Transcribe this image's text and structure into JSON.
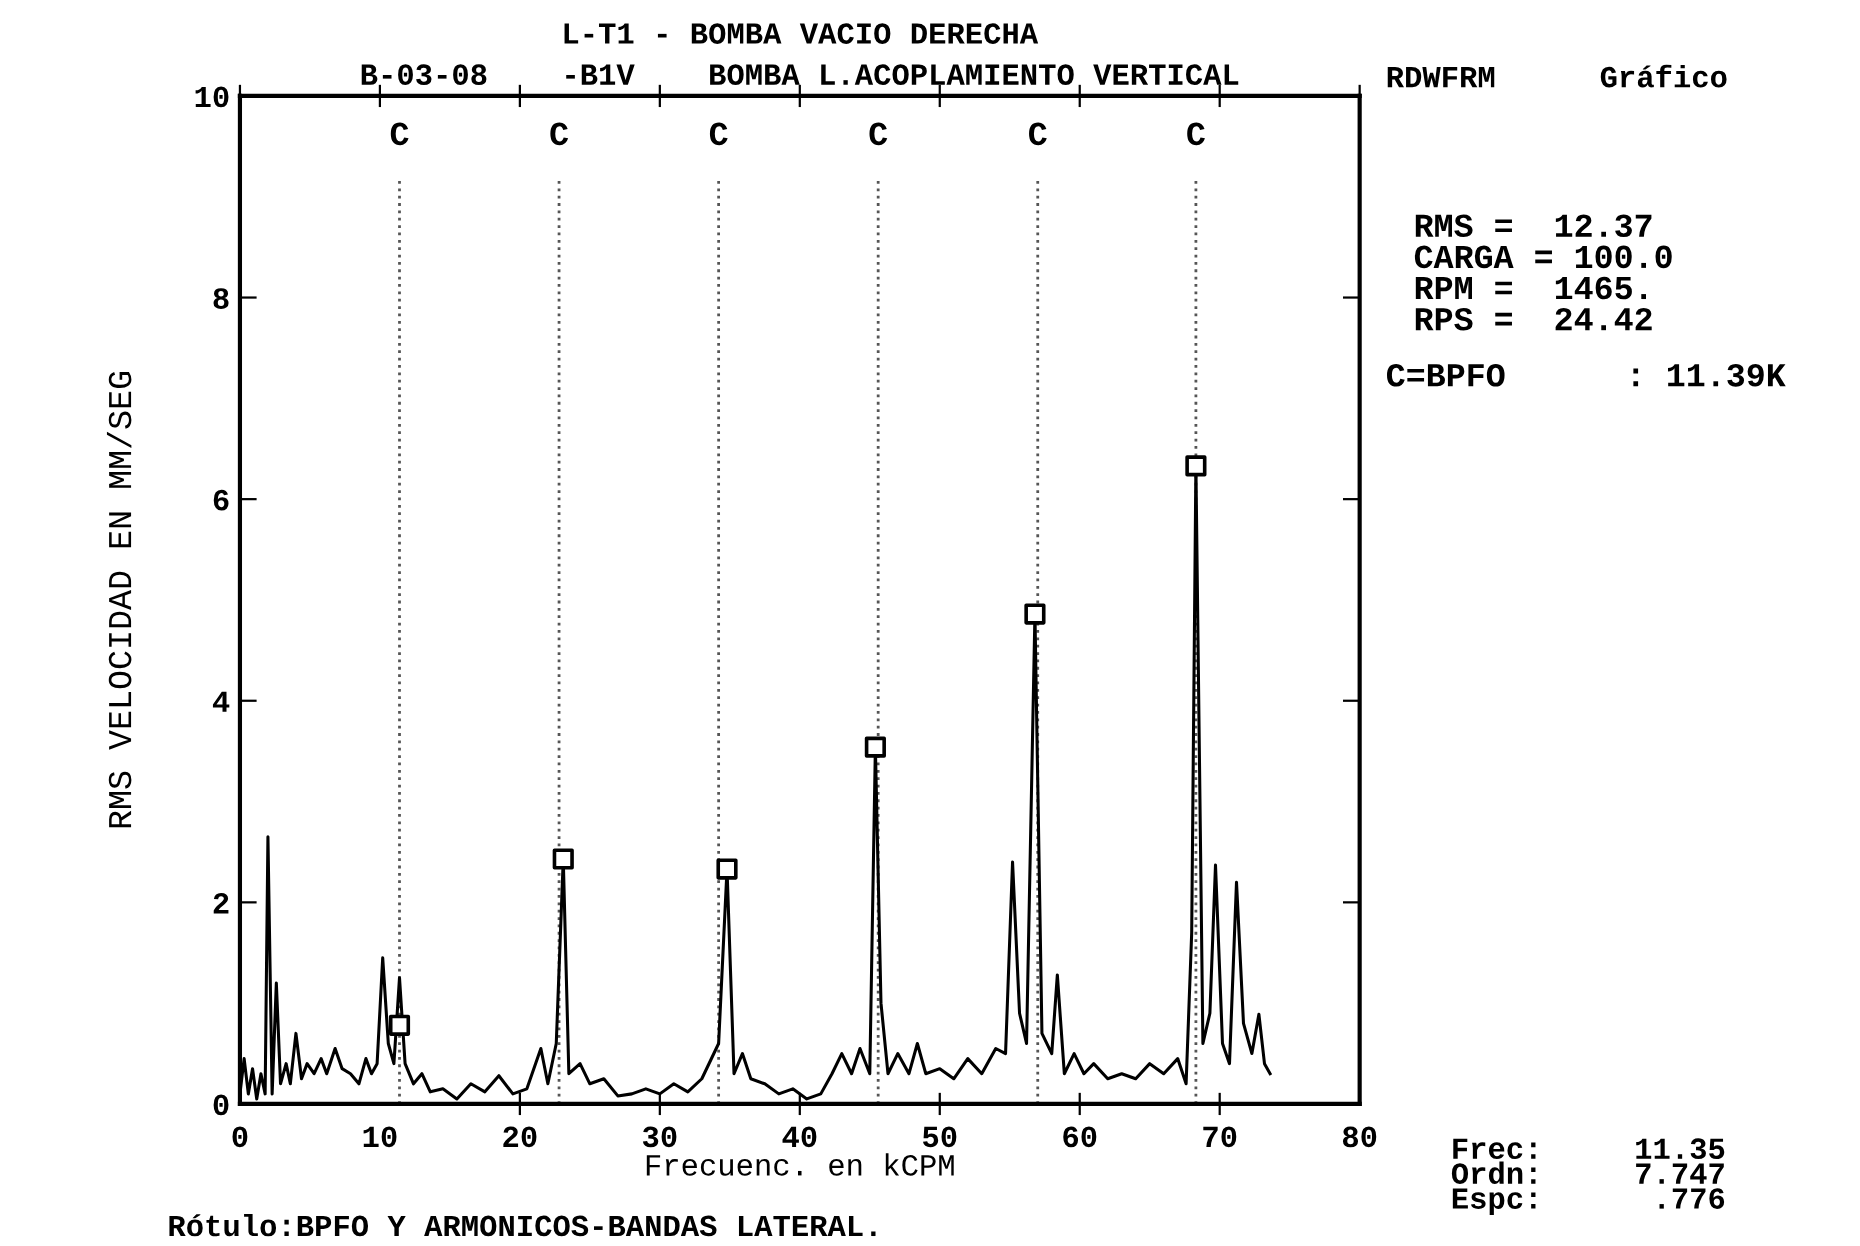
{
  "chart_data": {
    "type": "line",
    "title": "L-T1 - BOMBA VACIO DERECHA",
    "subtitle": "B-03-08    -B1V    BOMBA L.ACOPLAMIENTO VERTICAL",
    "xlabel": "Frecuenc. en kCPM",
    "ylabel": "RMS VELOCIDAD EN MM/SEG",
    "xlim": [
      0,
      80
    ],
    "xticks": [
      0,
      10,
      20,
      30,
      40,
      50,
      60,
      70,
      80
    ],
    "ylim": [
      0,
      10
    ],
    "yticks": [
      0,
      2,
      4,
      6,
      8,
      10
    ],
    "grid": false,
    "legend": false,
    "series": [
      {
        "type": "line",
        "color": "#000000",
        "marker": "none",
        "line_style": "solid",
        "x": [
          0,
          0.3,
          0.6,
          0.9,
          1.2,
          1.5,
          1.8,
          2.0,
          2.3,
          2.6,
          2.9,
          3.3,
          3.6,
          4.0,
          4.4,
          4.8,
          5.3,
          5.8,
          6.2,
          6.8,
          7.3,
          7.9,
          8.5,
          9.0,
          9.4,
          9.8,
          10.2,
          10.6,
          11.0,
          11.4,
          11.8,
          12.4,
          13,
          13.6,
          14.5,
          15.5,
          16.5,
          17.5,
          18.5,
          19.5,
          20.5,
          21.5,
          22.0,
          22.6,
          23.1,
          23.5,
          24.3,
          25,
          26,
          27,
          28,
          29,
          30,
          31,
          32,
          33,
          34.2,
          34.8,
          35.3,
          35.9,
          36.5,
          37.5,
          38.5,
          39.5,
          40.5,
          41.5,
          42.3,
          43,
          43.7,
          44.3,
          45.0,
          45.4,
          45.8,
          46.3,
          47,
          47.8,
          48.4,
          49,
          50,
          51,
          52,
          53,
          54,
          54.7,
          55.2,
          55.7,
          56.2,
          56.8,
          57.3,
          58,
          58.4,
          58.9,
          59.6,
          60.3,
          61,
          62,
          63,
          64,
          65,
          66,
          67,
          67.6,
          68.0,
          68.3,
          68.8,
          69.3,
          69.7,
          70.2,
          70.7,
          71.2,
          71.7,
          72.3,
          72.8,
          73.2,
          73.6
        ],
        "values": [
          0.1,
          0.45,
          0.1,
          0.35,
          0.05,
          0.3,
          0.1,
          2.65,
          0.1,
          1.2,
          0.2,
          0.4,
          0.2,
          0.7,
          0.25,
          0.4,
          0.3,
          0.45,
          0.3,
          0.55,
          0.35,
          0.3,
          0.2,
          0.45,
          0.3,
          0.4,
          1.45,
          0.6,
          0.4,
          1.25,
          0.4,
          0.2,
          0.3,
          0.12,
          0.15,
          0.05,
          0.2,
          0.12,
          0.28,
          0.1,
          0.15,
          0.55,
          0.2,
          0.6,
          2.43,
          0.3,
          0.4,
          0.2,
          0.25,
          0.08,
          0.1,
          0.15,
          0.1,
          0.2,
          0.12,
          0.25,
          0.6,
          2.33,
          0.3,
          0.5,
          0.25,
          0.2,
          0.1,
          0.15,
          0.05,
          0.1,
          0.3,
          0.5,
          0.3,
          0.55,
          0.3,
          3.54,
          1.0,
          0.3,
          0.5,
          0.3,
          0.6,
          0.3,
          0.35,
          0.25,
          0.45,
          0.3,
          0.55,
          0.5,
          2.4,
          0.9,
          0.6,
          4.86,
          0.7,
          0.5,
          1.28,
          0.3,
          0.5,
          0.3,
          0.4,
          0.25,
          0.3,
          0.25,
          0.4,
          0.3,
          0.45,
          0.2,
          1.7,
          6.33,
          0.6,
          0.9,
          2.37,
          0.6,
          0.4,
          2.2,
          0.8,
          0.5,
          0.89,
          0.4,
          0.3
        ]
      },
      {
        "type": "scatter",
        "color": "#000000",
        "marker": "square",
        "x": [
          11.4,
          23.1,
          34.8,
          45.4,
          56.8,
          68.3
        ],
        "values": [
          0.78,
          2.43,
          2.33,
          3.54,
          4.86,
          6.33
        ]
      }
    ],
    "ref_lines": [
      {
        "axis": "x",
        "value": 11.4,
        "label": "C",
        "line_style": "dotted",
        "color": "#555555"
      },
      {
        "axis": "x",
        "value": 22.8,
        "label": "C",
        "line_style": "dotted",
        "color": "#555555"
      },
      {
        "axis": "x",
        "value": 34.2,
        "label": "C",
        "line_style": "dotted",
        "color": "#555555"
      },
      {
        "axis": "x",
        "value": 45.6,
        "label": "C",
        "line_style": "dotted",
        "color": "#555555"
      },
      {
        "axis": "x",
        "value": 57.0,
        "label": "C",
        "line_style": "dotted",
        "color": "#555555"
      },
      {
        "axis": "x",
        "value": 68.3,
        "label": "C",
        "line_style": "dotted",
        "color": "#555555"
      }
    ],
    "annotations": [
      "RDWFRM",
      "Gráfico",
      "RMS =  12.37",
      "CARGA = 100.0",
      "RPM =  1465.",
      "RPS =  24.42",
      "C=BPFO      : 11.39K",
      "Frec:     11.35",
      "Ordn:     7.747",
      "Espc:      .776",
      "Rótulo:BPFO Y ARMONICOS-BANDAS LATERAL."
    ]
  }
}
